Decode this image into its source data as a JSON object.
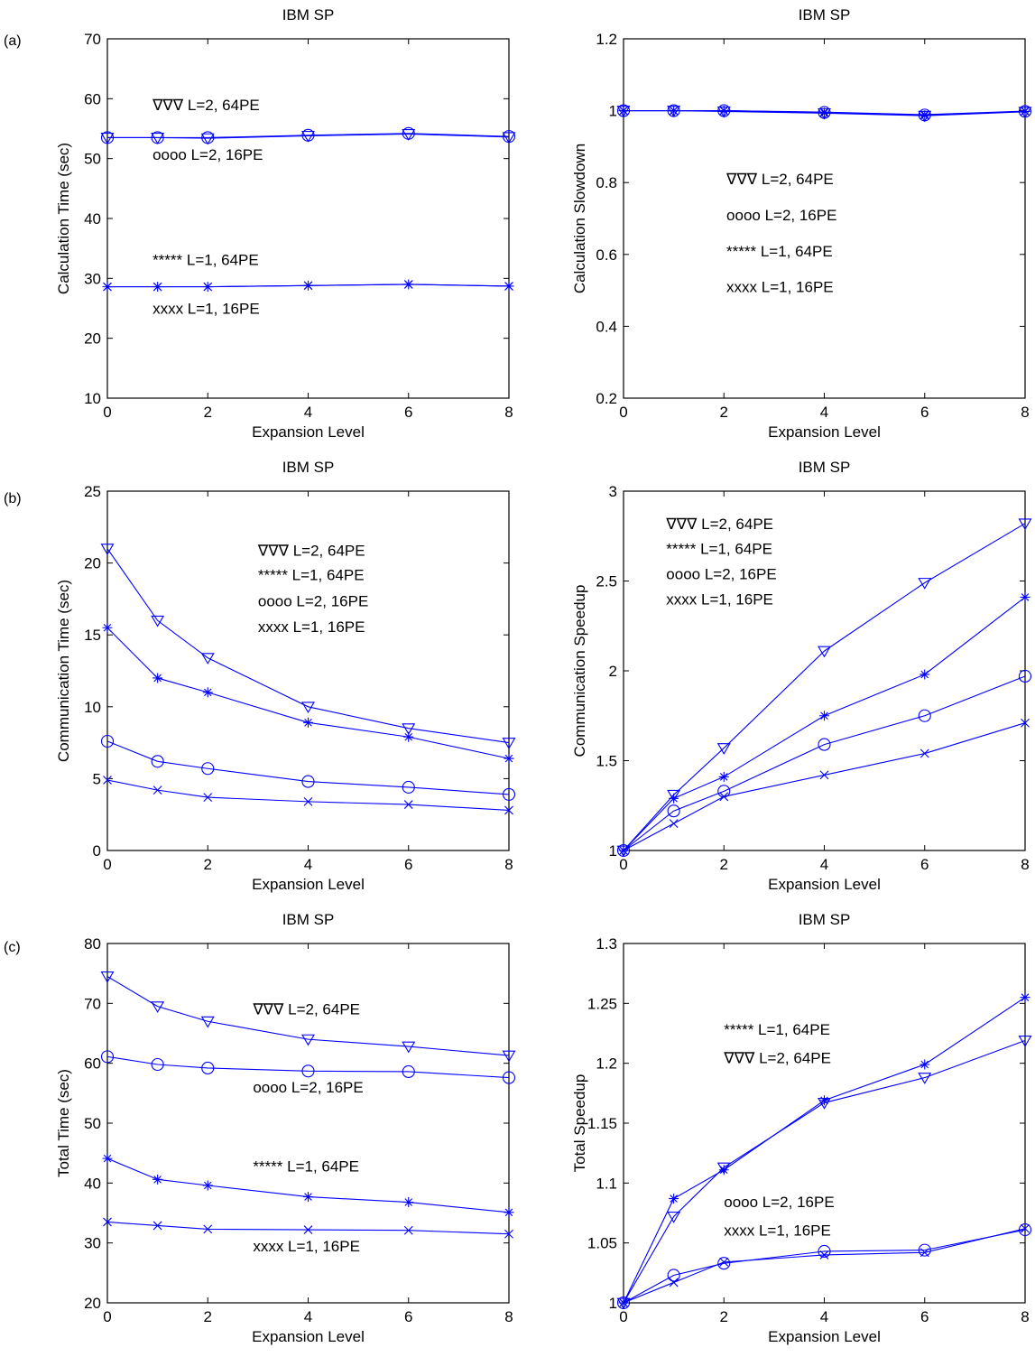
{
  "row_labels": [
    "(a)",
    "(b)",
    "(c)"
  ],
  "chart_data": [
    {
      "type": "line",
      "title": "IBM SP",
      "xlabel": "Expansion Level",
      "ylabel": "Calculation Time (sec)",
      "xlim": [
        0,
        8
      ],
      "ylim": [
        10,
        70
      ],
      "xticks": [
        0,
        2,
        4,
        6,
        8
      ],
      "yticks": [
        10,
        20,
        30,
        40,
        50,
        60,
        70
      ],
      "x": [
        0,
        1,
        2,
        4,
        6,
        8
      ],
      "series": [
        {
          "marker": "triangle",
          "values": [
            53.5,
            53.5,
            53.4,
            53.8,
            54.1,
            53.6
          ]
        },
        {
          "marker": "circle",
          "values": [
            53.5,
            53.5,
            53.5,
            53.9,
            54.2,
            53.7
          ]
        },
        {
          "marker": "star",
          "values": [
            28.6,
            28.6,
            28.6,
            28.8,
            29.0,
            28.7
          ]
        },
        {
          "marker": "x",
          "values": [
            28.6,
            28.6,
            28.6,
            28.8,
            29.0,
            28.7
          ]
        }
      ],
      "annotations": [
        {
          "text": "∇∇∇  L=2, 64PE",
          "x": 0.9,
          "y": 58.1
        },
        {
          "text": "oooo  L=2, 16PE",
          "x": 0.9,
          "y": 49.8
        },
        {
          "text": "*****  L=1, 64PE",
          "x": 0.9,
          "y": 32.2
        },
        {
          "text": "xxxx   L=1, 16PE",
          "x": 0.9,
          "y": 24.1
        }
      ]
    },
    {
      "type": "line",
      "title": "IBM SP",
      "xlabel": "Expansion Level",
      "ylabel": "Calculation Slowdown",
      "xlim": [
        0,
        8
      ],
      "ylim": [
        0.2,
        1.2
      ],
      "xticks": [
        0,
        2,
        4,
        6,
        8
      ],
      "yticks": [
        0.2,
        0.4,
        0.6,
        0.8,
        1,
        1.2
      ],
      "x": [
        0,
        1,
        2,
        4,
        6,
        8
      ],
      "series": [
        {
          "marker": "triangle",
          "values": [
            1.0,
            1.0,
            0.998,
            0.993,
            0.986,
            0.997
          ]
        },
        {
          "marker": "circle",
          "values": [
            1.0,
            1.0,
            1.0,
            0.995,
            0.988,
            0.998
          ]
        },
        {
          "marker": "star",
          "values": [
            1.0,
            1.0,
            1.0,
            0.994,
            0.987,
            0.998
          ]
        },
        {
          "marker": "x",
          "values": [
            1.0,
            1.0,
            1.0,
            0.996,
            0.989,
            0.999
          ]
        }
      ],
      "annotations": [
        {
          "text": "∇∇∇  L=2, 64PE",
          "x": 2.05,
          "y": 0.795
        },
        {
          "text": "oooo  L=2, 16PE",
          "x": 2.05,
          "y": 0.695
        },
        {
          "text": "*****  L=1, 64PE",
          "x": 2.05,
          "y": 0.595
        },
        {
          "text": "xxxx   L=1, 16PE",
          "x": 2.05,
          "y": 0.495
        }
      ]
    },
    {
      "type": "line",
      "title": "IBM SP",
      "xlabel": "Expansion Level",
      "ylabel": "Communication Time (sec)",
      "xlim": [
        0,
        8
      ],
      "ylim": [
        0,
        25
      ],
      "xticks": [
        0,
        2,
        4,
        6,
        8
      ],
      "yticks": [
        0,
        5,
        10,
        15,
        20,
        25
      ],
      "x": [
        0,
        1,
        2,
        4,
        6,
        8
      ],
      "series": [
        {
          "marker": "triangle",
          "values": [
            21.0,
            16.0,
            13.4,
            10.0,
            8.5,
            7.5
          ]
        },
        {
          "marker": "star",
          "values": [
            15.5,
            12.0,
            11.0,
            8.9,
            7.9,
            6.4
          ]
        },
        {
          "marker": "circle",
          "values": [
            7.6,
            6.2,
            5.7,
            4.8,
            4.4,
            3.9
          ]
        },
        {
          "marker": "x",
          "values": [
            4.9,
            4.2,
            3.7,
            3.4,
            3.2,
            2.8
          ]
        }
      ],
      "annotations": [
        {
          "text": "∇∇∇  L=2, 64PE",
          "x": 3.0,
          "y": 20.5
        },
        {
          "text": "*****  L=1, 64PE",
          "x": 3.0,
          "y": 18.8
        },
        {
          "text": "oooo  L=2, 16PE",
          "x": 3.0,
          "y": 17.0
        },
        {
          "text": "xxxx   L=1, 16PE",
          "x": 3.0,
          "y": 15.2
        }
      ]
    },
    {
      "type": "line",
      "title": "IBM SP",
      "xlabel": "Expansion Level",
      "ylabel": "Communication Speedup",
      "xlim": [
        0,
        8
      ],
      "ylim": [
        1,
        3
      ],
      "xticks": [
        0,
        2,
        4,
        6,
        8
      ],
      "yticks": [
        1,
        1.5,
        2,
        2.5,
        3
      ],
      "x": [
        0,
        1,
        2,
        4,
        6,
        8
      ],
      "series": [
        {
          "marker": "triangle",
          "values": [
            1.0,
            1.31,
            1.57,
            2.11,
            2.49,
            2.82
          ]
        },
        {
          "marker": "star",
          "values": [
            1.0,
            1.29,
            1.41,
            1.75,
            1.98,
            2.41
          ]
        },
        {
          "marker": "circle",
          "values": [
            1.0,
            1.22,
            1.33,
            1.59,
            1.75,
            1.97
          ]
        },
        {
          "marker": "x",
          "values": [
            1.0,
            1.15,
            1.3,
            1.42,
            1.54,
            1.71
          ]
        }
      ],
      "annotations": [
        {
          "text": "∇∇∇  L=2, 64PE",
          "x": 0.85,
          "y": 2.79
        },
        {
          "text": "*****  L=1, 64PE",
          "x": 0.85,
          "y": 2.65
        },
        {
          "text": "oooo  L=2, 16PE",
          "x": 0.85,
          "y": 2.51
        },
        {
          "text": "xxxx   L=1, 16PE",
          "x": 0.85,
          "y": 2.37
        }
      ]
    },
    {
      "type": "line",
      "title": "IBM SP",
      "xlabel": "Expansion Level",
      "ylabel": "Total Time (sec)",
      "xlim": [
        0,
        8
      ],
      "ylim": [
        20,
        80
      ],
      "xticks": [
        0,
        2,
        4,
        6,
        8
      ],
      "yticks": [
        20,
        30,
        40,
        50,
        60,
        70,
        80
      ],
      "x": [
        0,
        1,
        2,
        4,
        6,
        8
      ],
      "series": [
        {
          "marker": "triangle",
          "values": [
            74.5,
            69.5,
            67.0,
            64.0,
            62.8,
            61.3
          ]
        },
        {
          "marker": "circle",
          "values": [
            61.1,
            59.8,
            59.2,
            58.7,
            58.6,
            57.6
          ]
        },
        {
          "marker": "star",
          "values": [
            44.1,
            40.6,
            39.6,
            37.7,
            36.8,
            35.1
          ]
        },
        {
          "marker": "x",
          "values": [
            33.5,
            32.9,
            32.3,
            32.2,
            32.1,
            31.5
          ]
        }
      ],
      "annotations": [
        {
          "text": "∇∇∇  L=2, 64PE",
          "x": 2.9,
          "y": 68.2
        },
        {
          "text": "oooo  L=2, 16PE",
          "x": 2.9,
          "y": 55.1
        },
        {
          "text": "*****  L=1, 64PE",
          "x": 2.9,
          "y": 41.9
        },
        {
          "text": "xxxx   L=1, 16PE",
          "x": 2.9,
          "y": 28.6
        }
      ]
    },
    {
      "type": "line",
      "title": "IBM SP",
      "xlabel": "Expansion Level",
      "ylabel": "Total Speedup",
      "xlim": [
        0,
        8
      ],
      "ylim": [
        1,
        1.3
      ],
      "xticks": [
        0,
        2,
        4,
        6,
        8
      ],
      "yticks": [
        1,
        1.05,
        1.1,
        1.15,
        1.2,
        1.25,
        1.3
      ],
      "x": [
        0,
        1,
        2,
        4,
        6,
        8
      ],
      "series": [
        {
          "marker": "star",
          "values": [
            1.0,
            1.087,
            1.111,
            1.169,
            1.199,
            1.255
          ]
        },
        {
          "marker": "triangle",
          "values": [
            1.0,
            1.072,
            1.113,
            1.167,
            1.188,
            1.219
          ]
        },
        {
          "marker": "circle",
          "values": [
            1.0,
            1.023,
            1.033,
            1.043,
            1.044,
            1.061
          ]
        },
        {
          "marker": "x",
          "values": [
            1.0,
            1.017,
            1.034,
            1.04,
            1.042,
            1.062
          ]
        }
      ],
      "annotations": [
        {
          "text": "*****  L=1, 64PE",
          "x": 2.0,
          "y": 1.224
        },
        {
          "text": "∇∇∇  L=2, 64PE",
          "x": 2.0,
          "y": 1.2
        },
        {
          "text": "oooo  L=2, 16PE",
          "x": 2.0,
          "y": 1.08
        },
        {
          "text": "xxxx   L=1, 16PE",
          "x": 2.0,
          "y": 1.056
        }
      ]
    }
  ]
}
